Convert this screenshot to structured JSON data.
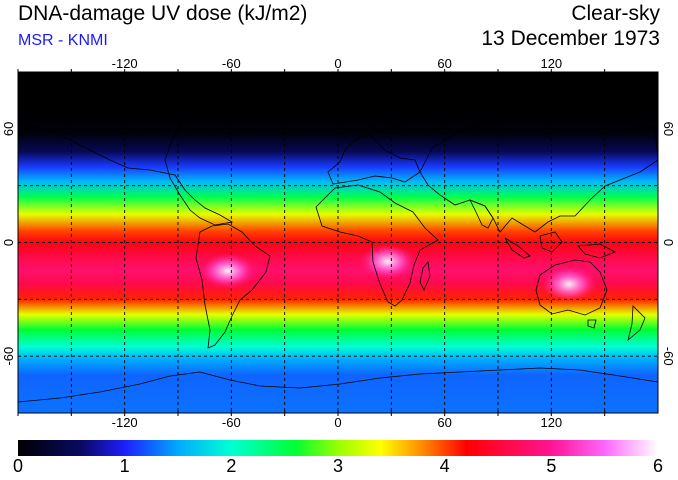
{
  "header": {
    "title": "DNA-damage UV dose (kJ/m2)",
    "subtitle": "MSR - KNMI",
    "condition": "Clear-sky",
    "date": "13 December 1973"
  },
  "colors": {
    "subtitle": "#1a1aff",
    "gridline": "#000000"
  },
  "map": {
    "lon_range": [
      -180,
      180
    ],
    "lat_range": [
      -90,
      90
    ],
    "lon_ticks": [
      -120,
      -60,
      0,
      60,
      120
    ],
    "lat_ticks": [
      60,
      0,
      -60
    ],
    "lon_tick_labels": [
      "-120",
      "-60",
      "0",
      "60",
      "120"
    ],
    "lat_tick_labels": [
      "60",
      "0",
      "-60"
    ],
    "grid_lon": [
      -150,
      -120,
      -90,
      -60,
      -30,
      0,
      30,
      60,
      90,
      120,
      150
    ],
    "grid_lat": [
      60,
      30,
      0,
      -30,
      -60
    ],
    "coastlines": true
  },
  "colorbar": {
    "min": 0,
    "max": 6,
    "tick_labels": [
      "0",
      "1",
      "2",
      "3",
      "4",
      "5",
      "6"
    ],
    "stops": [
      {
        "value": 0.0,
        "color": "#000000"
      },
      {
        "value": 0.6,
        "color": "#0a0a66"
      },
      {
        "value": 1.0,
        "color": "#1e1eff"
      },
      {
        "value": 1.5,
        "color": "#00aaff"
      },
      {
        "value": 2.0,
        "color": "#00ffd4"
      },
      {
        "value": 2.6,
        "color": "#00ff33"
      },
      {
        "value": 3.0,
        "color": "#99ff00"
      },
      {
        "value": 3.4,
        "color": "#ffff00"
      },
      {
        "value": 3.8,
        "color": "#ff8800"
      },
      {
        "value": 4.2,
        "color": "#ff0000"
      },
      {
        "value": 5.0,
        "color": "#ff1493"
      },
      {
        "value": 5.5,
        "color": "#ff66ff"
      },
      {
        "value": 6.0,
        "color": "#ffffff"
      }
    ]
  },
  "field": {
    "zonal_profile": [
      {
        "lat": 90,
        "dose": 0.0
      },
      {
        "lat": 72,
        "dose": 0.0
      },
      {
        "lat": 58,
        "dose": 0.05
      },
      {
        "lat": 48,
        "dose": 0.5
      },
      {
        "lat": 40,
        "dose": 1.1
      },
      {
        "lat": 32,
        "dose": 1.6
      },
      {
        "lat": 24,
        "dose": 2.5
      },
      {
        "lat": 15,
        "dose": 3.3
      },
      {
        "lat": 6,
        "dose": 4.0
      },
      {
        "lat": 0,
        "dose": 4.3
      },
      {
        "lat": -8,
        "dose": 4.6
      },
      {
        "lat": -15,
        "dose": 4.8
      },
      {
        "lat": -22,
        "dose": 4.6
      },
      {
        "lat": -30,
        "dose": 4.1
      },
      {
        "lat": -38,
        "dose": 3.3
      },
      {
        "lat": -46,
        "dose": 2.6
      },
      {
        "lat": -55,
        "dose": 2.0
      },
      {
        "lat": -62,
        "dose": 1.5
      },
      {
        "lat": -70,
        "dose": 1.25
      },
      {
        "lat": -90,
        "dose": 1.3
      }
    ],
    "hotspots": [
      {
        "lon": -62,
        "lat": -15,
        "dose": 5.9
      },
      {
        "lon": 28,
        "lat": -10,
        "dose": 5.8
      },
      {
        "lon": 130,
        "lat": -22,
        "dose": 5.4
      }
    ]
  }
}
